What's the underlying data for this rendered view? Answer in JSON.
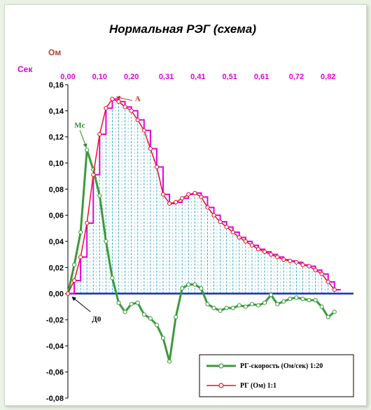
{
  "chart_data": {
    "type": "line",
    "title": "Нормальная  РЭГ (схема)",
    "y_unit_label": "Ом",
    "x_unit_label": "Сек",
    "x_tick_labels": [
      "0,00",
      "0,10",
      "0,20",
      "0,31",
      "0,41",
      "0,51",
      "0,61",
      "0,72",
      "0,82"
    ],
    "x_tick_values": [
      0.0,
      0.1,
      0.2,
      0.31,
      0.41,
      0.51,
      0.61,
      0.72,
      0.82
    ],
    "xlim": [
      0.0,
      0.9
    ],
    "ylim": [
      -0.08,
      0.16
    ],
    "y_tick_labels": [
      "0,16",
      "0,14",
      "0,12",
      "0,10",
      "0,08",
      "0,06",
      "0,04",
      "0,02",
      "0,00",
      "-0,02",
      "-0,04",
      "-0,06",
      "-0,08"
    ],
    "y_tick_values": [
      0.16,
      0.14,
      0.12,
      0.1,
      0.08,
      0.06,
      0.04,
      0.02,
      0.0,
      -0.02,
      -0.04,
      -0.06,
      -0.08
    ],
    "series": [
      {
        "name": "РГ-скорость  (Ом/сек) 1:20",
        "color": "#3a9a3a",
        "marker_color": "#3a9a3a",
        "x": [
          0.0,
          0.02,
          0.04,
          0.06,
          0.08,
          0.1,
          0.12,
          0.14,
          0.16,
          0.18,
          0.2,
          0.22,
          0.24,
          0.26,
          0.28,
          0.3,
          0.32,
          0.34,
          0.36,
          0.38,
          0.4,
          0.42,
          0.44,
          0.46,
          0.48,
          0.5,
          0.52,
          0.54,
          0.56,
          0.58,
          0.6,
          0.62,
          0.64,
          0.66,
          0.68,
          0.7,
          0.72,
          0.74,
          0.76,
          0.78,
          0.8,
          0.82,
          0.84
        ],
        "values": [
          0.0,
          0.022,
          0.047,
          0.11,
          0.095,
          0.075,
          0.04,
          0.012,
          -0.007,
          -0.014,
          -0.008,
          -0.007,
          -0.016,
          -0.019,
          -0.024,
          -0.034,
          -0.052,
          -0.018,
          0.004,
          0.007,
          0.007,
          0.004,
          -0.008,
          -0.011,
          -0.013,
          -0.011,
          -0.011,
          -0.009,
          -0.01,
          -0.008,
          -0.009,
          -0.007,
          -0.001,
          -0.008,
          -0.006,
          -0.004,
          -0.003,
          -0.004,
          -0.005,
          -0.005,
          -0.01,
          -0.018,
          -0.014
        ]
      },
      {
        "name": "РГ (Ом) 1:1",
        "color": "#e8102a",
        "marker_color": "#e8102a",
        "x": [
          0.0,
          0.02,
          0.04,
          0.06,
          0.08,
          0.1,
          0.12,
          0.14,
          0.16,
          0.18,
          0.2,
          0.22,
          0.24,
          0.26,
          0.28,
          0.3,
          0.32,
          0.34,
          0.36,
          0.38,
          0.4,
          0.42,
          0.44,
          0.46,
          0.48,
          0.5,
          0.52,
          0.54,
          0.56,
          0.58,
          0.6,
          0.62,
          0.64,
          0.66,
          0.68,
          0.7,
          0.72,
          0.74,
          0.76,
          0.78,
          0.8,
          0.82,
          0.84
        ],
        "values": [
          0.0,
          0.01,
          0.028,
          0.054,
          0.091,
          0.122,
          0.142,
          0.149,
          0.147,
          0.143,
          0.14,
          0.133,
          0.125,
          0.111,
          0.097,
          0.076,
          0.069,
          0.07,
          0.073,
          0.076,
          0.077,
          0.074,
          0.066,
          0.06,
          0.055,
          0.051,
          0.047,
          0.043,
          0.04,
          0.037,
          0.034,
          0.032,
          0.03,
          0.028,
          0.026,
          0.025,
          0.024,
          0.022,
          0.021,
          0.018,
          0.015,
          0.009,
          0.003
        ]
      },
      {
        "name": "",
        "color": "#e000e0",
        "style": "step",
        "x": [
          0.0,
          0.02,
          0.04,
          0.06,
          0.08,
          0.1,
          0.12,
          0.14,
          0.16,
          0.18,
          0.2,
          0.22,
          0.24,
          0.26,
          0.28,
          0.3,
          0.32,
          0.34,
          0.36,
          0.38,
          0.4,
          0.42,
          0.44,
          0.46,
          0.48,
          0.5,
          0.52,
          0.54,
          0.56,
          0.58,
          0.6,
          0.62,
          0.64,
          0.66,
          0.68,
          0.7,
          0.72,
          0.74,
          0.76,
          0.78,
          0.8,
          0.82,
          0.84
        ],
        "values": [
          0.0,
          0.01,
          0.028,
          0.054,
          0.091,
          0.122,
          0.142,
          0.149,
          0.147,
          0.143,
          0.14,
          0.133,
          0.125,
          0.111,
          0.097,
          0.076,
          0.069,
          0.07,
          0.073,
          0.076,
          0.077,
          0.074,
          0.066,
          0.06,
          0.055,
          0.051,
          0.047,
          0.043,
          0.04,
          0.037,
          0.034,
          0.032,
          0.03,
          0.028,
          0.026,
          0.025,
          0.024,
          0.022,
          0.021,
          0.018,
          0.015,
          0.009,
          0.003
        ]
      }
    ],
    "zero_line_color": "#1030c0",
    "dropline_color": "#2aa8c8",
    "annotations": [
      {
        "label": "А",
        "x": 0.145,
        "y": 0.15,
        "color": "#c0392b"
      },
      {
        "label": "Мс",
        "x": 0.06,
        "y": 0.11,
        "color": "#2e8b2e"
      },
      {
        "label": "Д0",
        "x": 0.005,
        "y": 0.0,
        "color": "#000000"
      }
    ],
    "grid": false,
    "legend_position": "bottom-right"
  }
}
